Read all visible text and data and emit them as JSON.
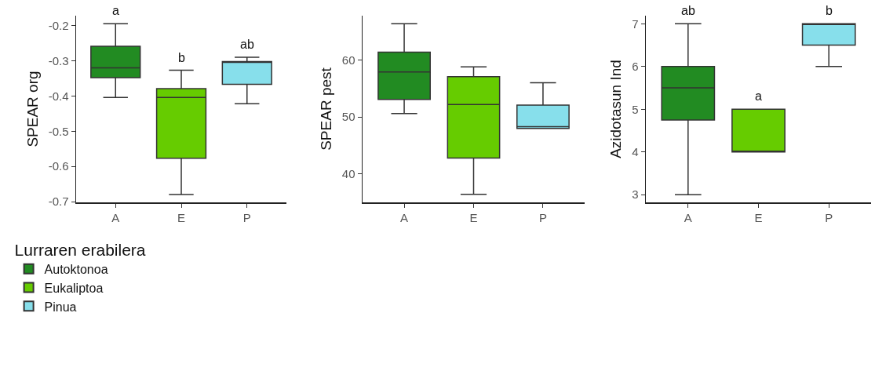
{
  "chart_data": [
    {
      "type": "box",
      "ylabel": "SPEAR org",
      "categories": [
        "A",
        "E",
        "P"
      ],
      "ylim": [
        -0.702,
        -0.172
      ],
      "yticks": [
        -0.7,
        -0.6,
        -0.5,
        -0.4,
        -0.3,
        -0.2
      ],
      "legend": "bottom",
      "legend_title": "Lurraren erabilera",
      "series": [
        {
          "name": "Autoktonoa",
          "color": "#228b22",
          "boxes": [
            {
              "low": -0.404,
              "q1": -0.348,
              "median": -0.32,
              "q3": -0.259,
              "high": -0.195
            },
            null,
            null
          ]
        },
        {
          "name": "Eukaliptoa",
          "color": "#66cc00",
          "boxes": [
            null,
            {
              "low": -0.68,
              "q1": -0.577,
              "median": -0.404,
              "q3": -0.379,
              "high": -0.327
            },
            null
          ]
        },
        {
          "name": "Pinua",
          "color": "#87dfeb",
          "boxes": [
            null,
            null,
            {
              "low": -0.422,
              "q1": -0.367,
              "median": -0.304,
              "q3": -0.302,
              "high": -0.29
            }
          ]
        }
      ],
      "annotations": [
        "a",
        "b",
        "ab"
      ]
    },
    {
      "type": "box",
      "ylabel": "SPEAR pest",
      "categories": [
        "A",
        "E",
        "P"
      ],
      "ylim": [
        35,
        67.8
      ],
      "yticks": [
        40,
        50,
        60
      ],
      "series": [
        {
          "color": "#228b22",
          "boxes": [
            {
              "low": 50.6,
              "q1": 53.1,
              "median": 57.9,
              "q3": 61.4,
              "high": 66.4
            },
            null,
            null
          ]
        },
        {
          "color": "#66cc00",
          "boxes": [
            null,
            {
              "low": 36.4,
              "q1": 42.8,
              "median": 52.2,
              "q3": 57.1,
              "high": 58.8
            },
            null
          ]
        },
        {
          "color": "#87dfeb",
          "boxes": [
            null,
            null,
            {
              "low": 48.0,
              "q1": 48.0,
              "median": 48.3,
              "q3": 52.1,
              "high": 56.0
            }
          ]
        }
      ]
    },
    {
      "type": "box",
      "ylabel": "Azidotasun Ind",
      "categories": [
        "A",
        "E",
        "P"
      ],
      "ylim": [
        2.82,
        7.19
      ],
      "yticks": [
        3,
        4,
        5,
        6,
        7
      ],
      "series": [
        {
          "color": "#228b22",
          "boxes": [
            {
              "low": 3,
              "q1": 4.75,
              "median": 5.5,
              "q3": 6,
              "high": 7
            },
            null,
            null
          ]
        },
        {
          "color": "#66cc00",
          "boxes": [
            null,
            {
              "low": 4,
              "q1": 4,
              "median": 4.02,
              "q3": 5,
              "high": 5
            },
            null
          ]
        },
        {
          "color": "#87dfeb",
          "boxes": [
            null,
            null,
            {
              "low": 6,
              "q1": 6.5,
              "median": 7,
              "q3": 7,
              "high": 7
            }
          ]
        }
      ],
      "annotations": [
        "ab",
        "a",
        "b"
      ]
    }
  ]
}
